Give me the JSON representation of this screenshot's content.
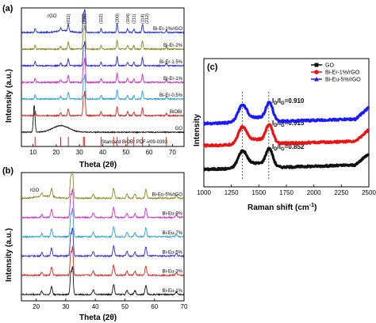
{
  "chart_data": [
    {
      "panel": "(a)",
      "type": "line",
      "xlabel": "Theta (2θ)",
      "ylabel": "Intensity (a.u.)",
      "xlim": [
        5,
        75
      ],
      "xticks": [
        10,
        20,
        30,
        40,
        50,
        60,
        70
      ],
      "hkl_labels": [
        {
          "label": "(011)",
          "x": 25.2
        },
        {
          "label": "(102)",
          "x": 31.7
        },
        {
          "label": "(110)",
          "x": 32.2
        },
        {
          "label": "(112)",
          "x": 39.2
        },
        {
          "label": "(200)",
          "x": 46.2
        },
        {
          "label": "(104)",
          "x": 50.7
        },
        {
          "label": "(211)",
          "x": 53.4
        },
        {
          "label": "(114)",
          "x": 57.1
        },
        {
          "label": "(212)",
          "x": 59.0
        }
      ],
      "reference": {
        "label": "Standard BiOBr  PDF-#09-0393",
        "color": "#e0211a",
        "positions": [
          10.9,
          21.9,
          25.2,
          31.7,
          32.2,
          39.3,
          44.7,
          46.2,
          50.7,
          53.4,
          57.1,
          67.4
        ]
      },
      "series": [
        {
          "name": "Bi-Er-1%/rGO",
          "color": "#1f2fd6",
          "label_extra": "rGO"
        },
        {
          "name": "Bi-Er-2%",
          "color": "#8c8a1e"
        },
        {
          "name": "Bi-Er-1.5%",
          "color": "#2a2ad0"
        },
        {
          "name": "Bi-Er-1%",
          "color": "#d02ad0"
        },
        {
          "name": "Bi-Er-0.5%",
          "color": "#2aa0d8"
        },
        {
          "name": "BiOBr",
          "color": "#e0211a"
        },
        {
          "name": "GO",
          "color": "#111111"
        }
      ]
    },
    {
      "panel": "(b)",
      "type": "line",
      "xlabel": "Theta (2θ)",
      "ylabel": "Intensity (a.u.)",
      "xlim": [
        15,
        70
      ],
      "xticks": [
        20,
        30,
        40,
        50,
        60,
        70
      ],
      "series": [
        {
          "name": "Bi-Eu-5%/rGO",
          "color": "#8c8a1e",
          "label_extra": "rGO"
        },
        {
          "name": "Bi-Eu-9%",
          "color": "#d02ad0"
        },
        {
          "name": "Bi-Eu-7%",
          "color": "#2aa0d8"
        },
        {
          "name": "Bi-Eu-5%",
          "color": "#2a2ad0"
        },
        {
          "name": "Bi-Eu-3%",
          "color": "#e0211a"
        },
        {
          "name": "Bi-Eu-1%",
          "color": "#111111"
        }
      ]
    },
    {
      "panel": "(c)",
      "type": "line",
      "xlabel": "Raman shift (cm⁻¹)",
      "ylabel": "Intensity",
      "xlim": [
        1000,
        2500
      ],
      "xticks": [
        1000,
        1250,
        1500,
        1750,
        2000,
        2250,
        2500
      ],
      "reference_lines": [
        1350,
        1590
      ],
      "series": [
        {
          "name": "GO",
          "color": "#111111",
          "marker": "square",
          "ratio": "I_D/I_G=0.852",
          "ratio_main": "0.852"
        },
        {
          "name": "Bi-Er-1%/rGO",
          "color": "#ee1111",
          "marker": "circle",
          "ratio": "I_D/I_G=0.915",
          "ratio_main": "0.915"
        },
        {
          "name": "Bi-Eu-5%/rGO",
          "color": "#1a1aff",
          "marker": "triangle",
          "ratio": "I_D/I_G=0.910",
          "ratio_main": "0.910"
        }
      ],
      "legend_position": "top-right"
    }
  ],
  "texts": {
    "a_letter": "(a)",
    "b_letter": "(b)",
    "c_letter": "(c)",
    "rgo": "rGO",
    "ref_label": "Standard BiOBr  PDF-#09-0393",
    "x_label_xrd": "Theta (2θ)",
    "y_label_xrd": "Intensity (a.u.)",
    "x_label_raman_prefix": "Raman shift (cm",
    "x_label_raman_sup": "-1",
    "x_label_raman_suffix": ")",
    "y_label_raman": "Intensity",
    "ratio_prefix": "I",
    "ratio_sub_d": "D",
    "ratio_slash": "/I",
    "ratio_sub_g": "G"
  }
}
